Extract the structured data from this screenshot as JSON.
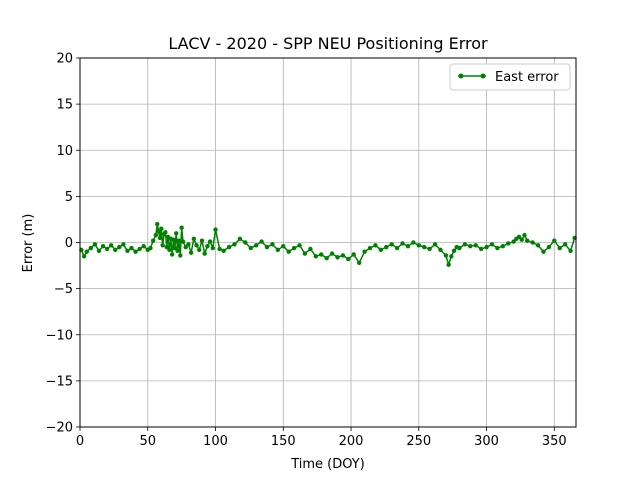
{
  "chart_data": {
    "type": "line",
    "title": "LACV - 2020 - SPP NEU Positioning Error",
    "xlabel": "Time (DOY)",
    "ylabel": "Error (m)",
    "xlim": [
      0,
      366
    ],
    "ylim": [
      -20,
      20
    ],
    "xticks": [
      0,
      50,
      100,
      150,
      200,
      250,
      300,
      350
    ],
    "yticks": [
      -20,
      -15,
      -10,
      -5,
      0,
      5,
      10,
      15,
      20
    ],
    "grid": true,
    "legend_position": "top-right",
    "series": [
      {
        "name": "East error",
        "color": "#008000",
        "marker": "circle",
        "x": [
          1,
          3,
          5,
          8,
          11,
          14,
          17,
          20,
          23,
          26,
          29,
          32,
          35,
          38,
          41,
          44,
          47,
          50,
          52,
          54,
          56,
          57,
          58,
          59,
          60,
          61,
          62,
          63,
          64,
          65,
          66,
          67,
          68,
          69,
          70,
          71,
          72,
          73,
          74,
          75,
          76,
          78,
          80,
          82,
          84,
          86,
          88,
          90,
          92,
          94,
          96,
          98,
          100,
          103,
          106,
          110,
          114,
          118,
          122,
          126,
          130,
          134,
          138,
          142,
          146,
          150,
          154,
          158,
          162,
          166,
          170,
          174,
          178,
          182,
          186,
          190,
          194,
          198,
          202,
          206,
          210,
          214,
          218,
          222,
          226,
          230,
          234,
          238,
          242,
          246,
          250,
          254,
          258,
          262,
          266,
          270,
          272,
          274,
          276,
          278,
          280,
          284,
          288,
          292,
          296,
          300,
          304,
          308,
          312,
          316,
          320,
          322,
          324,
          326,
          328,
          330,
          334,
          338,
          342,
          346,
          350,
          354,
          358,
          362,
          365
        ],
        "y": [
          -0.8,
          -1.5,
          -1.0,
          -0.6,
          -0.2,
          -0.9,
          -0.4,
          -0.7,
          -0.3,
          -0.8,
          -0.5,
          -0.2,
          -0.9,
          -0.6,
          -1.0,
          -0.7,
          -0.4,
          -0.8,
          -0.6,
          0.2,
          0.8,
          2.0,
          1.2,
          0.5,
          1.5,
          -0.3,
          0.9,
          1.1,
          -0.5,
          0.6,
          -0.8,
          0.4,
          -1.3,
          0.3,
          -0.6,
          1.0,
          -0.9,
          0.2,
          -1.4,
          1.6,
          0.1,
          -0.5,
          -0.2,
          -1.1,
          0.4,
          -0.3,
          -0.8,
          0.2,
          -1.2,
          -0.4,
          0.1,
          -0.6,
          1.4,
          -0.7,
          -0.9,
          -0.5,
          -0.2,
          0.4,
          0.0,
          -0.6,
          -0.3,
          0.1,
          -0.5,
          -0.2,
          -0.8,
          -0.4,
          -1.0,
          -0.6,
          -0.3,
          -1.2,
          -0.7,
          -1.5,
          -1.3,
          -1.7,
          -1.2,
          -1.6,
          -1.4,
          -1.8,
          -1.3,
          -2.2,
          -1.0,
          -0.6,
          -0.3,
          -0.8,
          -0.5,
          -0.2,
          -0.6,
          -0.1,
          -0.4,
          0.0,
          -0.3,
          -0.5,
          -0.7,
          -0.2,
          -0.8,
          -1.4,
          -2.4,
          -1.5,
          -0.9,
          -0.5,
          -0.6,
          -0.2,
          -0.4,
          -0.3,
          -0.7,
          -0.5,
          -0.2,
          -0.6,
          -0.4,
          -0.1,
          0.1,
          0.4,
          0.6,
          0.3,
          0.8,
          0.2,
          0.0,
          -0.3,
          -1.0,
          -0.5,
          0.2,
          -0.6,
          -0.2,
          -0.9,
          0.5
        ]
      }
    ]
  }
}
